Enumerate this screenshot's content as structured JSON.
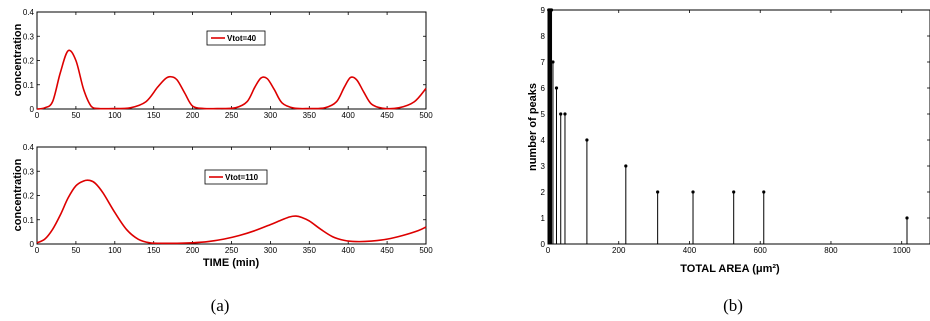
{
  "chart_data": [
    {
      "type": "line",
      "panel": "top-left",
      "ylabel": "concentration",
      "xlabel": "",
      "xlim": [
        0,
        500
      ],
      "ylim": [
        0,
        0.4
      ],
      "xticks": [
        0,
        50,
        100,
        150,
        200,
        250,
        300,
        350,
        400,
        450,
        500
      ],
      "yticks": [
        0,
        0.1,
        0.2,
        0.3,
        0.4
      ],
      "xtick_labels": [
        "0",
        "50",
        "100",
        "150",
        "200",
        "250",
        "300",
        "350",
        "400",
        "450",
        "500"
      ],
      "ytick_labels": [
        "0",
        "0.1",
        "0.2",
        "0.3",
        "0.4"
      ],
      "legend": "top-right",
      "color": "#dd0000",
      "series": [
        {
          "name": "Vtot=40",
          "x": [
            0,
            10,
            20,
            30,
            40,
            50,
            60,
            70,
            80,
            100,
            120,
            140,
            155,
            165,
            172,
            180,
            190,
            200,
            215,
            235,
            255,
            270,
            280,
            288,
            296,
            305,
            315,
            330,
            350,
            370,
            385,
            395,
            403,
            411,
            420,
            430,
            445,
            465,
            485,
            500
          ],
          "y": [
            0.0,
            0.005,
            0.03,
            0.15,
            0.24,
            0.2,
            0.08,
            0.01,
            0.002,
            0.002,
            0.005,
            0.03,
            0.09,
            0.125,
            0.133,
            0.12,
            0.065,
            0.012,
            0.002,
            0.002,
            0.005,
            0.03,
            0.09,
            0.128,
            0.125,
            0.08,
            0.025,
            0.004,
            0.002,
            0.005,
            0.03,
            0.09,
            0.13,
            0.12,
            0.07,
            0.02,
            0.003,
            0.005,
            0.03,
            0.085
          ]
        }
      ]
    },
    {
      "type": "line",
      "panel": "bottom-left",
      "ylabel": "concentration",
      "xlabel": "TIME (min)",
      "xlim": [
        0,
        500
      ],
      "ylim": [
        0,
        0.4
      ],
      "xticks": [
        0,
        50,
        100,
        150,
        200,
        250,
        300,
        350,
        400,
        450,
        500
      ],
      "yticks": [
        0,
        0.1,
        0.2,
        0.3,
        0.4
      ],
      "xtick_labels": [
        "0",
        "50",
        "100",
        "150",
        "200",
        "250",
        "300",
        "350",
        "400",
        "450",
        "500"
      ],
      "ytick_labels": [
        "0",
        "0.1",
        "0.2",
        "0.3",
        "0.4"
      ],
      "legend": "top-right",
      "color": "#dd0000",
      "series": [
        {
          "name": "Vtot=110",
          "x": [
            0,
            10,
            20,
            30,
            40,
            50,
            60,
            68,
            75,
            85,
            100,
            115,
            130,
            145,
            160,
            180,
            200,
            220,
            240,
            260,
            280,
            300,
            315,
            325,
            333,
            340,
            350,
            365,
            380,
            395,
            410,
            430,
            450,
            470,
            490,
            500
          ],
          "y": [
            0.005,
            0.02,
            0.06,
            0.12,
            0.19,
            0.24,
            0.26,
            0.262,
            0.25,
            0.21,
            0.13,
            0.06,
            0.02,
            0.005,
            0.003,
            0.003,
            0.005,
            0.01,
            0.02,
            0.035,
            0.055,
            0.08,
            0.1,
            0.112,
            0.115,
            0.11,
            0.095,
            0.06,
            0.03,
            0.015,
            0.01,
            0.012,
            0.02,
            0.035,
            0.055,
            0.07
          ]
        }
      ]
    },
    {
      "type": "stem",
      "panel": "right",
      "ylabel": "number of peaks",
      "xlabel": "TOTAL AREA (μm²)",
      "xlim": [
        0,
        1080
      ],
      "ylim": [
        0,
        9
      ],
      "xticks": [
        0,
        200,
        400,
        600,
        800,
        1000
      ],
      "yticks": [
        0,
        1,
        2,
        3,
        4,
        5,
        6,
        7,
        8,
        9
      ],
      "xtick_labels": [
        "0",
        "200",
        "400",
        "600",
        "800",
        "1000"
      ],
      "ytick_labels": [
        "0",
        "1",
        "2",
        "3",
        "4",
        "5",
        "6",
        "7",
        "8",
        "9"
      ],
      "color": "#000000",
      "x": [
        2,
        4,
        6,
        8,
        10,
        14,
        24,
        36,
        48,
        110,
        220,
        310,
        410,
        525,
        610,
        1015
      ],
      "y": [
        9,
        9,
        9,
        9,
        9,
        7,
        6,
        5,
        5,
        4,
        3,
        2,
        2,
        2,
        2,
        1
      ]
    }
  ],
  "captions": {
    "left": "(a)",
    "right": "(b)"
  }
}
